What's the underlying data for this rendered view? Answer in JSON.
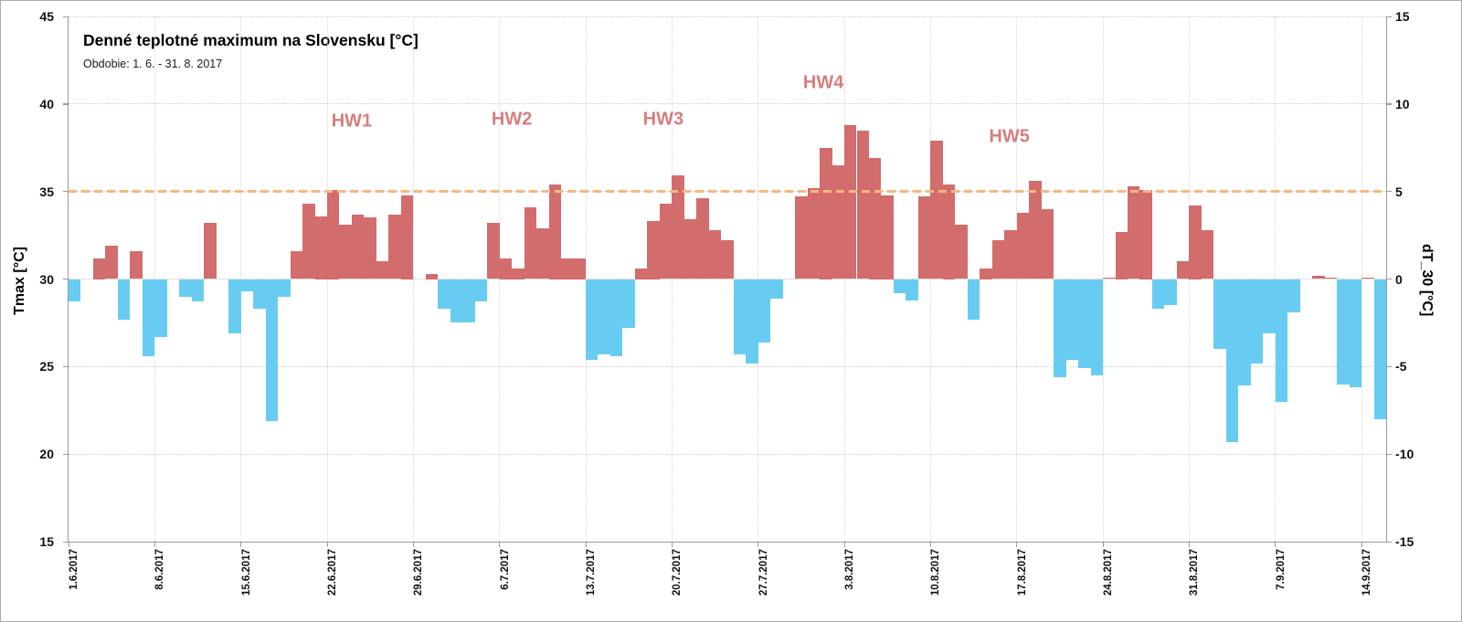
{
  "chart_data": {
    "type": "bar",
    "title": "Denné teplotné maximum na Slovensku [°C]",
    "subtitle": "Obdobie: 1. 6. - 31. 8. 2017",
    "y_left": {
      "label": "Tmax [°C]",
      "min": 15,
      "max": 45,
      "ticks": [
        45,
        40,
        35,
        30,
        25,
        20,
        15
      ]
    },
    "y_right": {
      "label": "dT_30 [°C]",
      "min": -15,
      "max": 15,
      "ticks": [
        15,
        10,
        5,
        0,
        -5,
        -10,
        -15
      ]
    },
    "baseline": 30,
    "threshold_line": {
      "value": 35,
      "style": "dashed"
    },
    "grid": true,
    "legend": "none",
    "x_ticks": [
      {
        "label": "1.6.2017",
        "day": 0
      },
      {
        "label": "8.6.2017",
        "day": 7
      },
      {
        "label": "15.6.2017",
        "day": 14
      },
      {
        "label": "22.6.2017",
        "day": 21
      },
      {
        "label": "29.6.2017",
        "day": 28
      },
      {
        "label": "6.7.2017",
        "day": 35
      },
      {
        "label": "13.7.2017",
        "day": 42
      },
      {
        "label": "20.7.2017",
        "day": 49
      },
      {
        "label": "27.7.2017",
        "day": 56
      },
      {
        "label": "3.8.2017",
        "day": 63
      },
      {
        "label": "10.8.2017",
        "day": 70
      },
      {
        "label": "17.8.2017",
        "day": 77
      },
      {
        "label": "24.8.2017",
        "day": 84
      },
      {
        "label": "31.8.2017",
        "day": 91
      },
      {
        "label": "7.9.2017",
        "day": 98
      },
      {
        "label": "14.9.2017",
        "day": 105
      }
    ],
    "series": [
      {
        "name": "Tmax",
        "start": "1.6.2017",
        "end": "15.9.2017",
        "values": [
          28.7,
          30.0,
          31.2,
          31.9,
          27.7,
          31.6,
          25.6,
          26.7,
          30.0,
          29.0,
          28.7,
          33.2,
          30.0,
          26.9,
          29.3,
          28.3,
          21.9,
          29.0,
          31.6,
          34.3,
          33.6,
          35.1,
          33.1,
          33.7,
          33.5,
          31.0,
          33.7,
          34.8,
          30.0,
          30.3,
          28.3,
          27.5,
          27.5,
          28.7,
          33.2,
          31.2,
          30.6,
          34.1,
          32.9,
          35.4,
          31.2,
          31.2,
          25.4,
          25.7,
          25.6,
          27.2,
          30.6,
          33.3,
          34.3,
          35.9,
          33.4,
          34.6,
          32.8,
          32.2,
          25.7,
          25.2,
          26.4,
          28.9,
          30.0,
          34.7,
          35.2,
          37.5,
          36.5,
          38.8,
          38.5,
          36.9,
          34.8,
          29.2,
          28.8,
          34.7,
          37.9,
          35.4,
          33.1,
          27.7,
          30.6,
          32.2,
          32.8,
          33.8,
          35.6,
          34.0,
          24.4,
          25.4,
          24.9,
          24.5,
          30.1,
          32.7,
          35.3,
          35.1,
          28.3,
          28.5,
          31.0,
          34.2,
          32.8,
          26.0,
          20.7,
          23.9,
          25.2,
          26.9,
          23.0,
          28.1,
          30.0,
          30.2,
          30.1,
          24.0,
          23.8,
          30.1,
          22.0
        ]
      }
    ],
    "heatwaves": [
      {
        "label": "HW1",
        "day": 23.0,
        "value": 39.0
      },
      {
        "label": "HW2",
        "day": 36.0,
        "value": 39.1
      },
      {
        "label": "HW3",
        "day": 48.3,
        "value": 39.1
      },
      {
        "label": "HW4",
        "day": 61.3,
        "value": 41.2
      },
      {
        "label": "HW5",
        "day": 76.4,
        "value": 38.1
      }
    ],
    "colors": {
      "above_baseline": "#d36c6c",
      "below_baseline": "#68ccf2",
      "annotation": "#d47e7e",
      "threshold": "#f6b87e",
      "grid": "#c9c9c9",
      "axis": "#9a9a9a"
    }
  }
}
